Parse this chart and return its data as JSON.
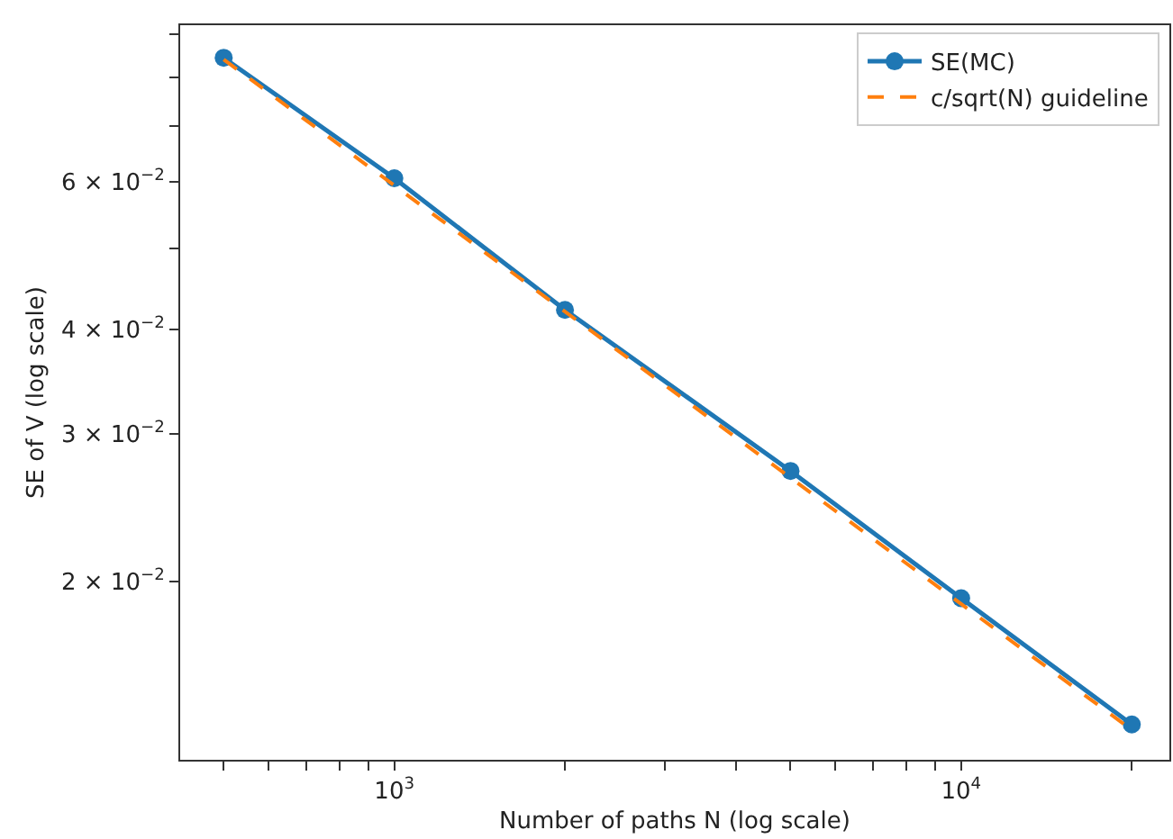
{
  "chart_data": {
    "type": "line",
    "xlabel": "Number of paths N (log scale)",
    "ylabel": "SE of V (log scale)",
    "x": [
      500,
      1000,
      2000,
      5000,
      10000,
      20000
    ],
    "series": [
      {
        "name": "SE(MC)",
        "color": "#1f77b4",
        "values": [
          0.0844,
          0.0606,
          0.0422,
          0.0271,
          0.0191,
          0.0135
        ],
        "marker": "circle",
        "line_style": "solid"
      },
      {
        "name": "c/sqrt(N) guideline",
        "color": "#ff7f0e",
        "values": [
          0.084,
          0.0594,
          0.042,
          0.0266,
          0.0188,
          0.0133
        ],
        "marker": "none",
        "line_style": "dashed"
      }
    ],
    "log": "xy",
    "legend": "top right",
    "xlim": [
      419,
      23300
    ],
    "ylim": [
      0.01225,
      0.0923
    ],
    "xticks": [
      {
        "value": 500,
        "label": null
      },
      {
        "value": 600,
        "label": null
      },
      {
        "value": 700,
        "label": null
      },
      {
        "value": 800,
        "label": null
      },
      {
        "value": 900,
        "label": null
      },
      {
        "value": 1000,
        "label": "10$^{3}$"
      },
      {
        "value": 2000,
        "label": null
      },
      {
        "value": 3000,
        "label": null
      },
      {
        "value": 4000,
        "label": null
      },
      {
        "value": 5000,
        "label": null
      },
      {
        "value": 6000,
        "label": null
      },
      {
        "value": 7000,
        "label": null
      },
      {
        "value": 8000,
        "label": null
      },
      {
        "value": 9000,
        "label": null
      },
      {
        "value": 10000,
        "label": "10$^{4}$"
      },
      {
        "value": 20000,
        "label": null
      }
    ],
    "yticks": [
      {
        "value": 0.02,
        "label": "2 × 10$^{−2}$"
      },
      {
        "value": 0.03,
        "label": "3 × 10$^{−2}$"
      },
      {
        "value": 0.04,
        "label": "4 × 10$^{−2}$"
      },
      {
        "value": 0.05,
        "label": null
      },
      {
        "value": 0.06,
        "label": "6 × 10$^{−2}$"
      },
      {
        "value": 0.07,
        "label": null
      },
      {
        "value": 0.08,
        "label": null
      },
      {
        "value": 0.09,
        "label": null
      }
    ]
  }
}
